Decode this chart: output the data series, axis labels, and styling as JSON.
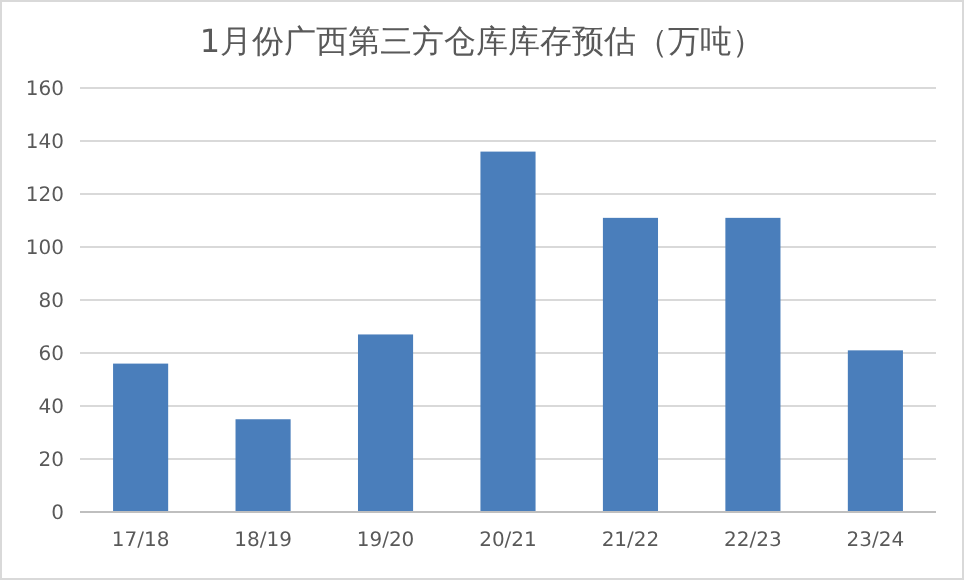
{
  "chart_data": {
    "type": "bar",
    "title": "1月份广西第三方仓库库存预估（万吨）",
    "categories": [
      "17/18",
      "18/19",
      "19/20",
      "20/21",
      "21/22",
      "22/23",
      "23/24"
    ],
    "values": [
      56,
      35,
      67,
      136,
      111,
      111,
      61
    ],
    "color": "#4a7ebb",
    "ylim": [
      0,
      160
    ],
    "yticks": [
      0,
      20,
      40,
      60,
      80,
      100,
      120,
      140,
      160
    ],
    "grid": "y"
  }
}
